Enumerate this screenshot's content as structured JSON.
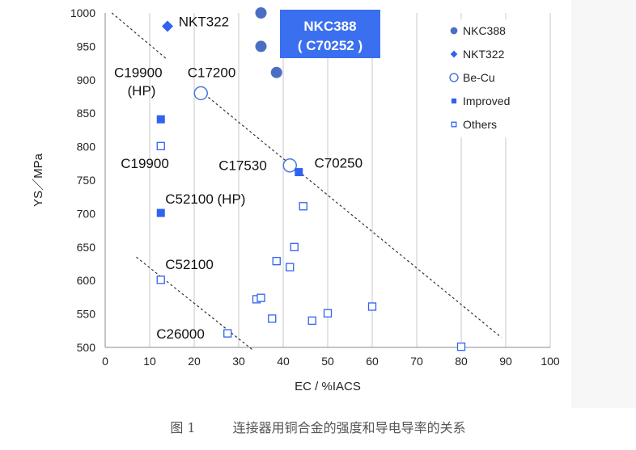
{
  "chart_data": {
    "type": "scatter",
    "xlabel": "EC / %IACS",
    "ylabel": "YS／MPa",
    "xlim": [
      0,
      100
    ],
    "ylim": [
      500,
      1000
    ],
    "x_ticks": [
      0,
      10,
      20,
      30,
      40,
      50,
      60,
      70,
      80,
      90,
      100
    ],
    "y_ticks": [
      500,
      550,
      600,
      650,
      700,
      750,
      800,
      850,
      900,
      950,
      1000
    ],
    "grid": "vertical",
    "legend_position": "top-right",
    "series": [
      {
        "name": "NKC388",
        "marker": "circle-filled",
        "color": "#4a6fc2",
        "points": [
          [
            35,
            1000
          ],
          [
            35,
            950
          ],
          [
            38.5,
            911
          ]
        ]
      },
      {
        "name": "NKT322",
        "marker": "diamond-filled",
        "color": "#2f63f0",
        "points": [
          [
            14,
            980
          ]
        ]
      },
      {
        "name": "Be-Cu",
        "marker": "circle-open",
        "color": "#4a78d8",
        "points": [
          [
            21.5,
            880
          ],
          [
            41.5,
            772
          ]
        ]
      },
      {
        "name": "Improved",
        "marker": "square-filled",
        "color": "#2f63f0",
        "points": [
          [
            12.5,
            841
          ],
          [
            12.5,
            701
          ],
          [
            43.5,
            762
          ]
        ]
      },
      {
        "name": "Others",
        "marker": "square-open",
        "color": "#2f63f0",
        "points": [
          [
            12.5,
            801
          ],
          [
            12.5,
            601
          ],
          [
            27.5,
            521
          ],
          [
            34,
            572
          ],
          [
            35,
            574
          ],
          [
            37.5,
            543
          ],
          [
            38.5,
            629
          ],
          [
            41.5,
            620
          ],
          [
            42.5,
            650
          ],
          [
            44.5,
            711
          ],
          [
            46.5,
            540
          ],
          [
            50,
            551
          ],
          [
            60,
            561
          ],
          [
            80,
            501
          ]
        ]
      }
    ],
    "trend_lines": [
      {
        "from": [
          1.5,
          1000
        ],
        "to": [
          14,
          930
        ]
      },
      {
        "from": [
          21.5,
          883
        ],
        "to": [
          89,
          515
        ]
      },
      {
        "from": [
          7,
          635
        ],
        "to": [
          33,
          497
        ]
      }
    ],
    "annotations": [
      {
        "text": "NKT322",
        "x": 16.5,
        "y": 980
      },
      {
        "text": "C19900",
        "x": 2,
        "y": 904
      },
      {
        "text": "(HP)",
        "x": 5,
        "y": 877
      },
      {
        "text": "C17200",
        "x": 18.5,
        "y": 904
      },
      {
        "text": "C19900",
        "x": 3.5,
        "y": 768
      },
      {
        "text": "C17530",
        "x": 25.5,
        "y": 765
      },
      {
        "text": "C70250",
        "x": 47,
        "y": 769
      },
      {
        "text": "C52100 (HP)",
        "x": 13.5,
        "y": 715
      },
      {
        "text": "C52100",
        "x": 13.5,
        "y": 617
      },
      {
        "text": "C26000",
        "x": 11.5,
        "y": 513
      }
    ],
    "callout": {
      "lines": [
        "NKC388",
        "( C70252 )"
      ],
      "bg": "#3a6ff0",
      "text_color": "#ffffff"
    }
  },
  "caption": {
    "label": "图 1",
    "text": "连接器用铜合金的强度和导电导率的关系"
  }
}
